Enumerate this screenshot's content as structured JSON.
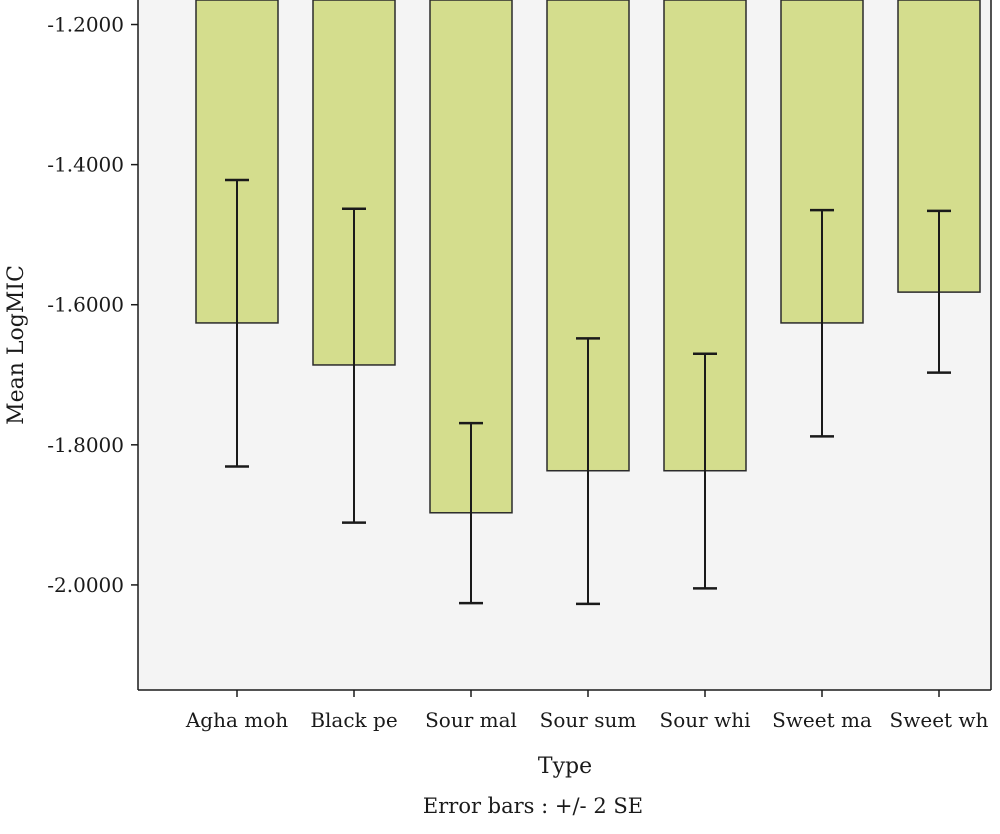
{
  "chart_data": {
    "type": "bar",
    "xlabel": "Type",
    "ylabel": "Mean LogMIC",
    "footnote": "Error bars : +/- 2 SE",
    "categories": [
      "Agha moh",
      "Black pe",
      "Sour mal",
      "Sour sum",
      "Sour whi",
      "Sweet ma",
      "Sweet wh"
    ],
    "values": [
      -1.626,
      -1.686,
      -1.897,
      -1.837,
      -1.837,
      -1.626,
      -1.582
    ],
    "error_high": [
      -1.422,
      -1.463,
      -1.769,
      -1.648,
      -1.67,
      -1.465,
      -1.466
    ],
    "error_low": [
      -1.831,
      -1.911,
      -2.026,
      -2.027,
      -2.005,
      -1.788,
      -1.697
    ],
    "yticks": [
      -1.2,
      -1.4,
      -1.6,
      -1.8,
      -2.0
    ],
    "ytick_labels": [
      "-1.2000",
      "-1.4000",
      "-1.6000",
      "-1.8000",
      "-2.0000"
    ],
    "ylim": [
      -2.15,
      -1.165
    ],
    "bar_baseline": -1.165,
    "grid": false,
    "colors": {
      "bar_fill": "#d4dd8d",
      "bar_stroke": "#2b2b2b",
      "plot_background": "#f4f4f4",
      "error_bar": "#1a1a1a"
    }
  }
}
